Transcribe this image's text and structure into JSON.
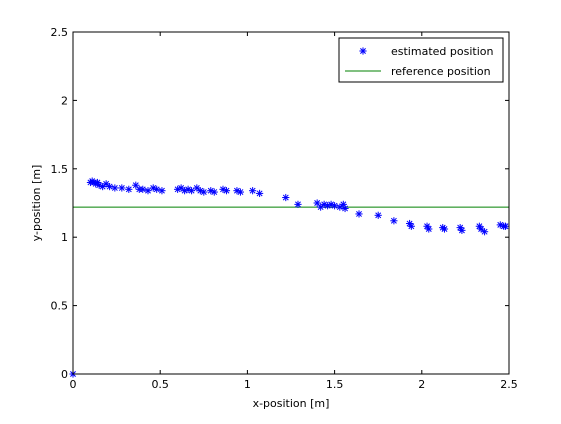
{
  "chart_data": {
    "type": "scatter",
    "xlabel": "x-position [m]",
    "ylabel": "y-position [m]",
    "xlim": [
      0,
      2.5
    ],
    "ylim": [
      0,
      2.5
    ],
    "xticks": [
      0,
      0.5,
      1,
      1.5,
      2,
      2.5
    ],
    "xtick_labels": [
      "0",
      "0.5",
      "1",
      "1.5",
      "2",
      "2.5"
    ],
    "yticks": [
      0,
      0.5,
      1,
      1.5,
      2,
      2.5
    ],
    "ytick_labels": [
      "0",
      "0.5",
      "1",
      "1.5",
      "2",
      "2.5"
    ],
    "grid": false,
    "legend_position": "top-right",
    "series": [
      {
        "name": "estimated position",
        "marker": "*",
        "color": "#0000ff",
        "x": [
          0.0,
          0.1,
          0.11,
          0.12,
          0.13,
          0.14,
          0.15,
          0.17,
          0.19,
          0.21,
          0.24,
          0.28,
          0.32,
          0.36,
          0.38,
          0.4,
          0.43,
          0.46,
          0.48,
          0.51,
          0.6,
          0.62,
          0.64,
          0.66,
          0.68,
          0.71,
          0.73,
          0.75,
          0.79,
          0.81,
          0.86,
          0.88,
          0.94,
          0.96,
          1.03,
          1.07,
          1.22,
          1.29,
          1.4,
          1.42,
          1.44,
          1.46,
          1.48,
          1.5,
          1.53,
          1.55,
          1.56,
          1.64,
          1.75,
          1.84,
          1.93,
          1.94,
          2.03,
          2.04,
          2.12,
          2.13,
          2.22,
          2.23,
          2.33,
          2.34,
          2.36,
          2.45,
          2.47,
          2.48
        ],
        "y": [
          0.0,
          1.4,
          1.41,
          1.4,
          1.39,
          1.4,
          1.38,
          1.37,
          1.39,
          1.37,
          1.36,
          1.36,
          1.35,
          1.38,
          1.35,
          1.35,
          1.34,
          1.36,
          1.35,
          1.34,
          1.35,
          1.36,
          1.34,
          1.35,
          1.34,
          1.36,
          1.34,
          1.33,
          1.34,
          1.33,
          1.35,
          1.34,
          1.34,
          1.33,
          1.34,
          1.32,
          1.29,
          1.24,
          1.25,
          1.22,
          1.24,
          1.23,
          1.24,
          1.23,
          1.22,
          1.24,
          1.21,
          1.17,
          1.16,
          1.12,
          1.1,
          1.08,
          1.08,
          1.06,
          1.07,
          1.06,
          1.07,
          1.05,
          1.08,
          1.06,
          1.04,
          1.09,
          1.08,
          1.08
        ]
      },
      {
        "name": "reference position",
        "style": "line",
        "color": "#008000",
        "y": 1.22
      }
    ]
  }
}
